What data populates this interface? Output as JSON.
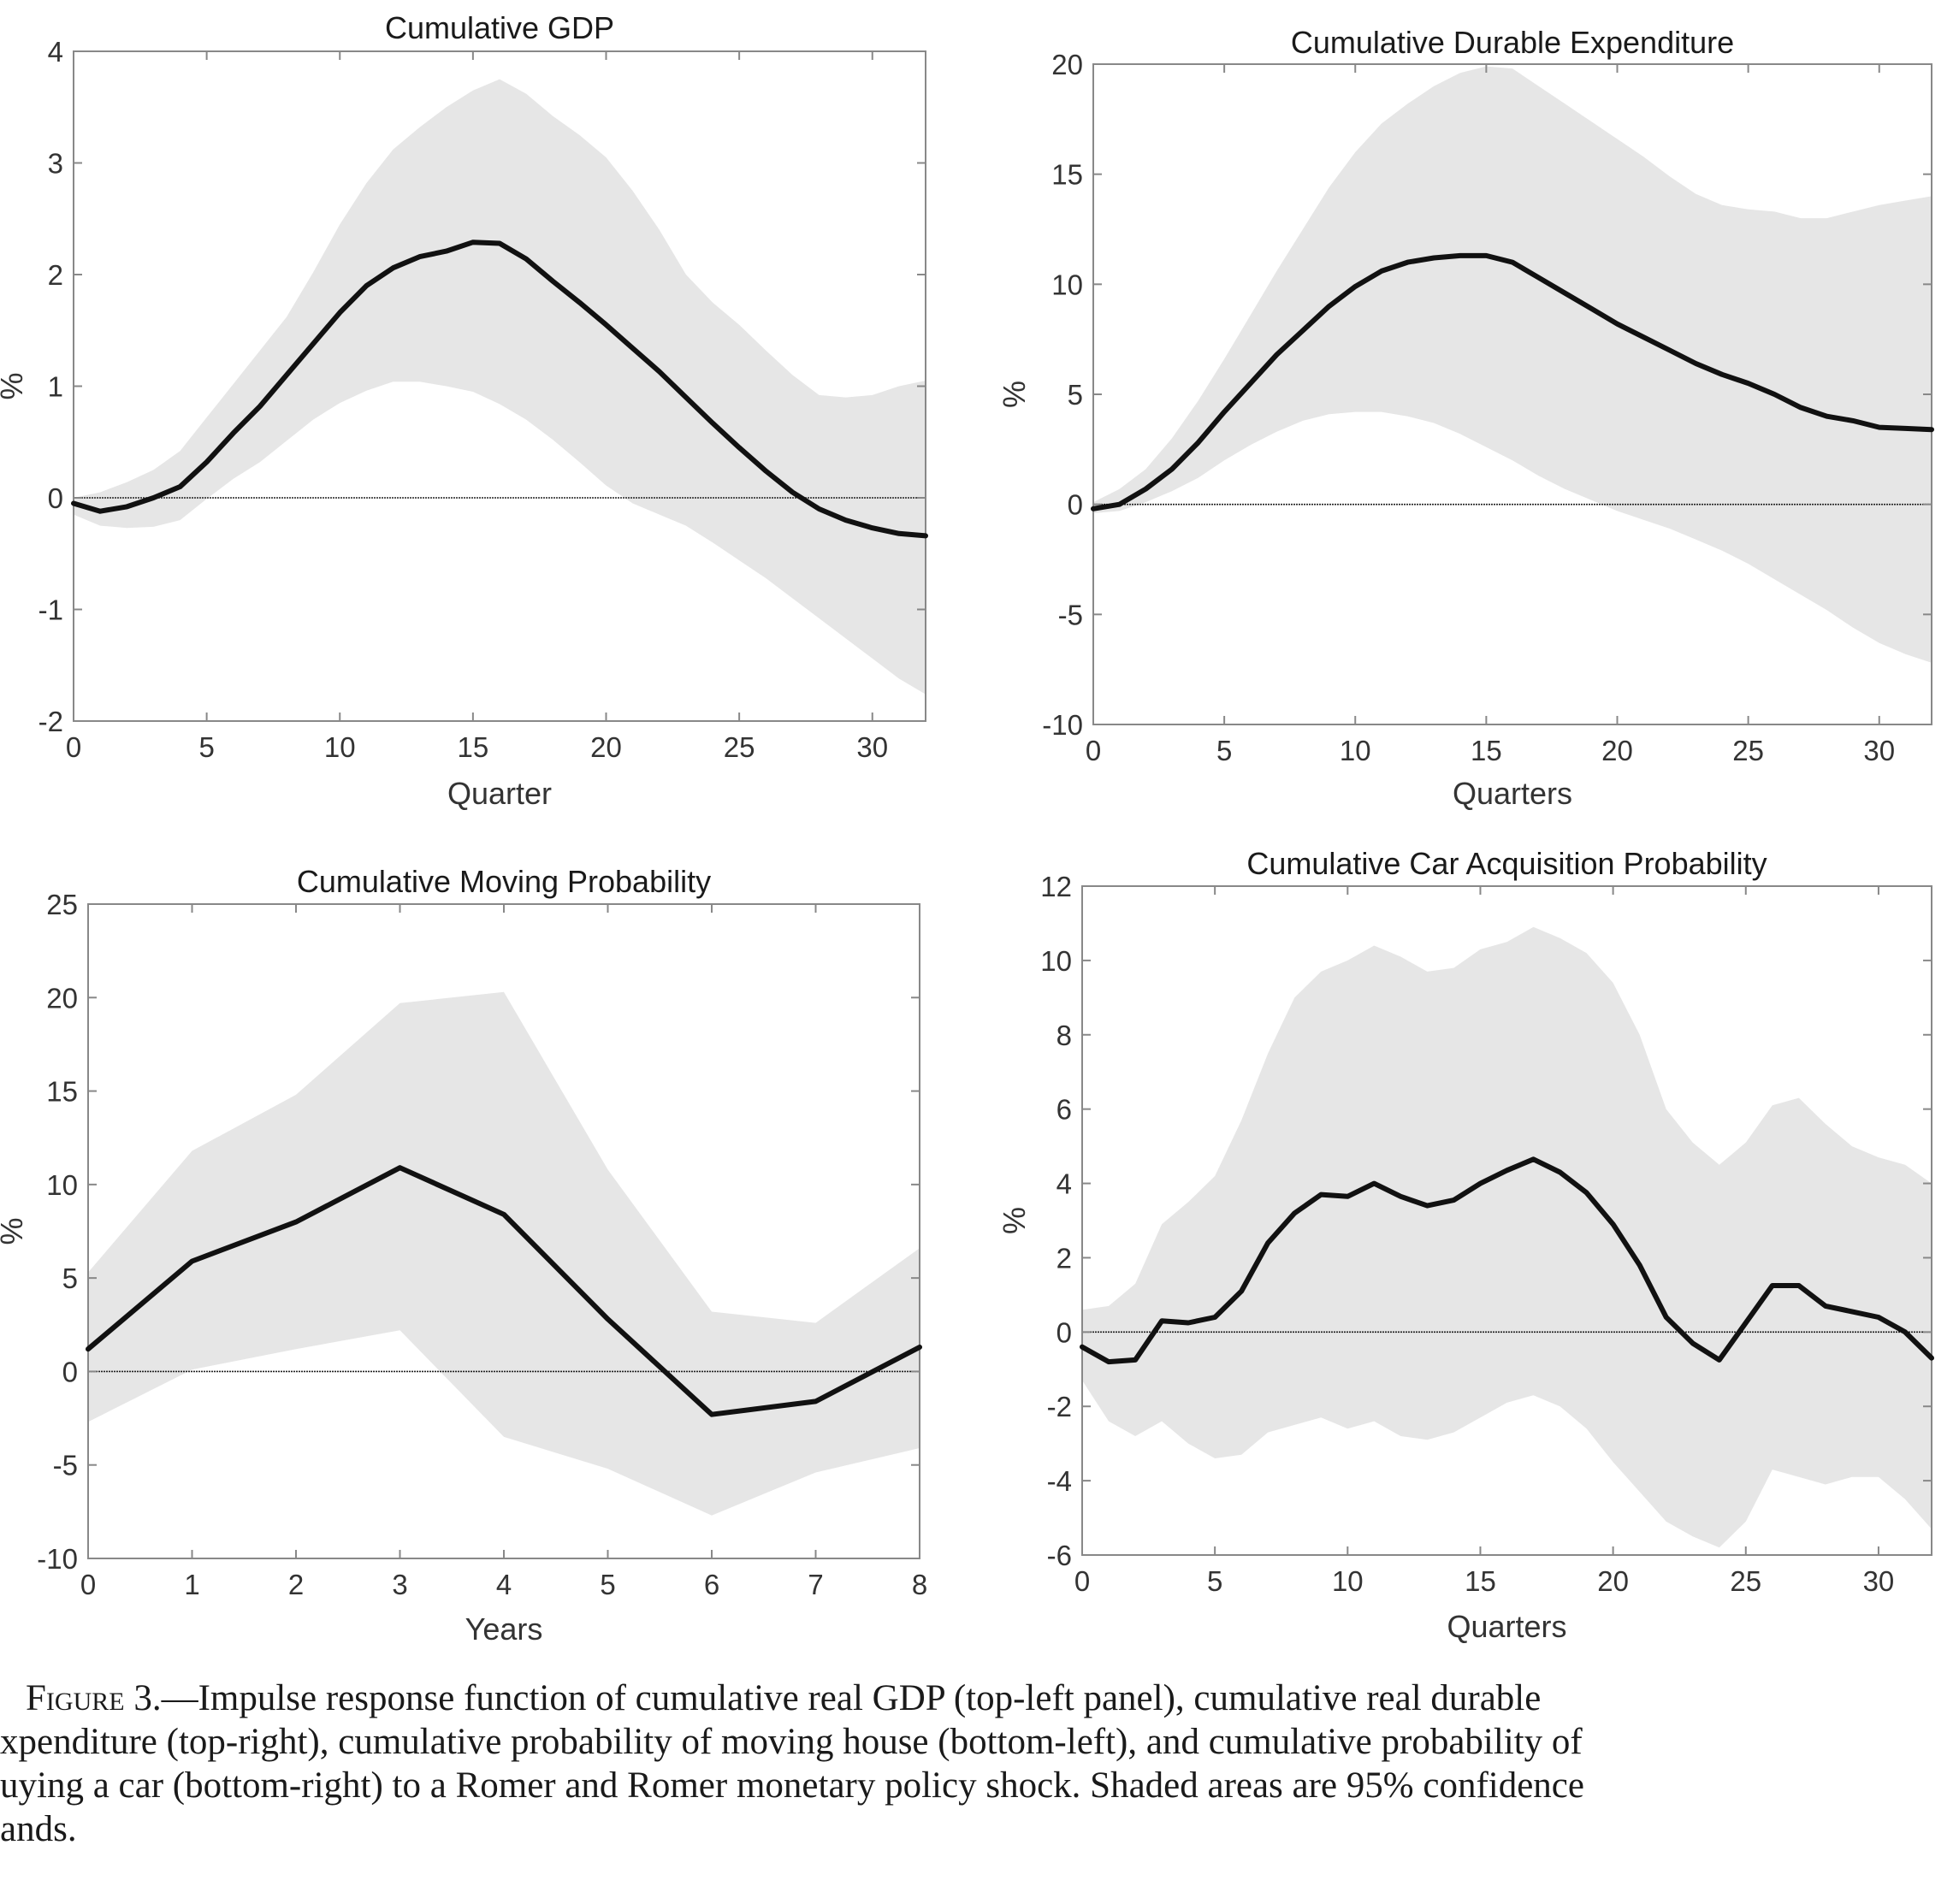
{
  "figure": {
    "caption_label": "Figure 3.",
    "caption_lines": [
      "—Impulse response function of cumulative real GDP (top-left panel), cumulative real durable",
      "xpenditure (top-right), cumulative probability of moving house (bottom-left), and cumulative probability of",
      "uying a car (bottom-right) to a Romer and Romer monetary policy shock. Shaded areas are 95% confidence",
      "ands."
    ]
  },
  "colors": {
    "band": "#e6e6e6",
    "line": "#111111",
    "axis": "#888888",
    "zero": "#222222",
    "text": "#333333"
  },
  "chart_data": [
    {
      "type": "line",
      "title": "Cumulative GDP",
      "xlabel": "Quarter",
      "ylabel": "%",
      "xlim": [
        0,
        32
      ],
      "ylim": [
        -2,
        4
      ],
      "xticks": [
        0,
        5,
        10,
        15,
        20,
        25,
        30
      ],
      "yticks": [
        -2,
        -1,
        0,
        1,
        2,
        3,
        4
      ],
      "x": [
        0,
        1,
        2,
        3,
        4,
        5,
        6,
        7,
        8,
        9,
        10,
        11,
        12,
        13,
        14,
        15,
        16,
        17,
        18,
        19,
        20,
        21,
        22,
        23,
        24,
        25,
        26,
        27,
        28,
        29,
        30,
        31,
        32
      ],
      "series": [
        {
          "values": [
            -0.05,
            -0.12,
            -0.08,
            0.0,
            0.1,
            0.32,
            0.58,
            0.82,
            1.1,
            1.38,
            1.66,
            1.9,
            2.06,
            2.16,
            2.21,
            2.29,
            2.28,
            2.14,
            1.94,
            1.75,
            1.55,
            1.34,
            1.13,
            0.9,
            0.67,
            0.45,
            0.24,
            0.05,
            -0.1,
            -0.2,
            -0.27,
            -0.32,
            -0.34
          ]
        }
      ],
      "band_upper": [
        0.0,
        0.05,
        0.14,
        0.25,
        0.42,
        0.72,
        1.02,
        1.32,
        1.62,
        2.02,
        2.45,
        2.82,
        3.12,
        3.32,
        3.5,
        3.65,
        3.75,
        3.62,
        3.42,
        3.25,
        3.05,
        2.75,
        2.4,
        2.0,
        1.75,
        1.55,
        1.32,
        1.1,
        0.92,
        0.9,
        0.92,
        1.0,
        1.05
      ],
      "band_lower": [
        -0.15,
        -0.25,
        -0.27,
        -0.26,
        -0.2,
        -0.01,
        0.17,
        0.32,
        0.51,
        0.7,
        0.85,
        0.96,
        1.04,
        1.04,
        1.0,
        0.95,
        0.84,
        0.7,
        0.52,
        0.32,
        0.11,
        -0.05,
        -0.15,
        -0.25,
        -0.4,
        -0.56,
        -0.72,
        -0.9,
        -1.08,
        -1.26,
        -1.44,
        -1.62,
        -1.76
      ]
    },
    {
      "type": "line",
      "title": "Cumulative Durable Expenditure",
      "xlabel": "Quarters",
      "ylabel": "%",
      "xlim": [
        0,
        32
      ],
      "ylim": [
        -10,
        20
      ],
      "xticks": [
        0,
        5,
        10,
        15,
        20,
        25,
        30
      ],
      "yticks": [
        -10,
        -5,
        0,
        5,
        10,
        15,
        20
      ],
      "x": [
        0,
        1,
        2,
        3,
        4,
        5,
        6,
        7,
        8,
        9,
        10,
        11,
        12,
        13,
        14,
        15,
        16,
        17,
        18,
        19,
        20,
        21,
        22,
        23,
        24,
        25,
        26,
        27,
        28,
        29,
        30,
        31,
        32
      ],
      "series": [
        {
          "values": [
            -0.2,
            0.0,
            0.7,
            1.6,
            2.8,
            4.2,
            5.5,
            6.8,
            7.9,
            9.0,
            9.9,
            10.6,
            11.0,
            11.2,
            11.3,
            11.3,
            11.0,
            10.3,
            9.6,
            8.9,
            8.2,
            7.6,
            7.0,
            6.4,
            5.9,
            5.5,
            5.0,
            4.4,
            4.0,
            3.8,
            3.5,
            3.45,
            3.4
          ]
        }
      ],
      "band_upper": [
        0.1,
        0.7,
        1.6,
        3.0,
        4.7,
        6.6,
        8.6,
        10.6,
        12.5,
        14.4,
        16.0,
        17.3,
        18.2,
        19.0,
        19.6,
        19.9,
        19.8,
        19.0,
        18.2,
        17.4,
        16.6,
        15.8,
        14.9,
        14.1,
        13.6,
        13.4,
        13.3,
        13.0,
        13.0,
        13.3,
        13.6,
        13.8,
        14.0
      ],
      "band_lower": [
        -0.4,
        -0.3,
        0.1,
        0.6,
        1.2,
        2.0,
        2.7,
        3.3,
        3.8,
        4.1,
        4.2,
        4.2,
        4.0,
        3.7,
        3.2,
        2.6,
        2.0,
        1.3,
        0.7,
        0.2,
        -0.3,
        -0.7,
        -1.1,
        -1.6,
        -2.1,
        -2.7,
        -3.4,
        -4.1,
        -4.8,
        -5.6,
        -6.3,
        -6.8,
        -7.2
      ]
    },
    {
      "type": "line",
      "title": "Cumulative Moving Probability",
      "xlabel": "Years",
      "ylabel": "%",
      "xlim": [
        0,
        8
      ],
      "ylim": [
        -10,
        25
      ],
      "xticks": [
        0,
        1,
        2,
        3,
        4,
        5,
        6,
        7,
        8
      ],
      "yticks": [
        -10,
        -5,
        0,
        5,
        10,
        15,
        20,
        25
      ],
      "x": [
        0,
        1,
        2,
        3,
        4,
        5,
        6,
        7,
        8
      ],
      "series": [
        {
          "values": [
            1.2,
            5.9,
            8.0,
            10.9,
            8.4,
            2.8,
            -2.3,
            -1.6,
            1.3
          ]
        }
      ],
      "band_upper": [
        5.3,
        11.8,
        14.8,
        19.7,
        20.3,
        10.8,
        3.2,
        2.6,
        6.6
      ],
      "band_lower": [
        -2.7,
        0.1,
        1.2,
        2.2,
        -3.5,
        -5.2,
        -7.7,
        -5.4,
        -4.1
      ]
    },
    {
      "type": "line",
      "title": "Cumulative Car Acquisition Probability",
      "xlabel": "Quarters",
      "ylabel": "%",
      "xlim": [
        0,
        32
      ],
      "ylim": [
        -6,
        12
      ],
      "xticks": [
        0,
        5,
        10,
        15,
        20,
        25,
        30
      ],
      "yticks": [
        -6,
        -4,
        -2,
        0,
        2,
        4,
        6,
        8,
        10,
        12
      ],
      "x": [
        0,
        1,
        2,
        3,
        4,
        5,
        6,
        7,
        8,
        9,
        10,
        11,
        12,
        13,
        14,
        15,
        16,
        17,
        18,
        19,
        20,
        21,
        22,
        23,
        24,
        25,
        26,
        27,
        28,
        29,
        30,
        31,
        32
      ],
      "series": [
        {
          "values": [
            -0.4,
            -0.8,
            -0.75,
            0.3,
            0.25,
            0.4,
            1.1,
            2.4,
            3.2,
            3.7,
            3.65,
            4.0,
            3.65,
            3.4,
            3.55,
            4.0,
            4.35,
            4.65,
            4.3,
            3.75,
            2.9,
            1.8,
            0.4,
            -0.3,
            -0.75,
            0.25,
            1.25,
            1.25,
            0.7,
            0.55,
            0.4,
            0.0,
            -0.7
          ]
        }
      ],
      "band_upper": [
        0.6,
        0.7,
        1.3,
        2.9,
        3.5,
        4.2,
        5.7,
        7.5,
        9.0,
        9.7,
        10.0,
        10.4,
        10.1,
        9.7,
        9.8,
        10.3,
        10.5,
        10.9,
        10.6,
        10.2,
        9.4,
        8.0,
        6.0,
        5.1,
        4.5,
        5.1,
        6.1,
        6.3,
        5.6,
        5.0,
        4.7,
        4.5,
        4.0
      ],
      "band_lower": [
        -1.3,
        -2.4,
        -2.8,
        -2.4,
        -3.0,
        -3.4,
        -3.3,
        -2.7,
        -2.5,
        -2.3,
        -2.6,
        -2.4,
        -2.8,
        -2.9,
        -2.7,
        -2.3,
        -1.9,
        -1.7,
        -2.0,
        -2.6,
        -3.5,
        -4.3,
        -5.1,
        -5.5,
        -5.8,
        -5.1,
        -3.7,
        -3.9,
        -4.1,
        -3.9,
        -3.9,
        -4.5,
        -5.3
      ]
    }
  ]
}
